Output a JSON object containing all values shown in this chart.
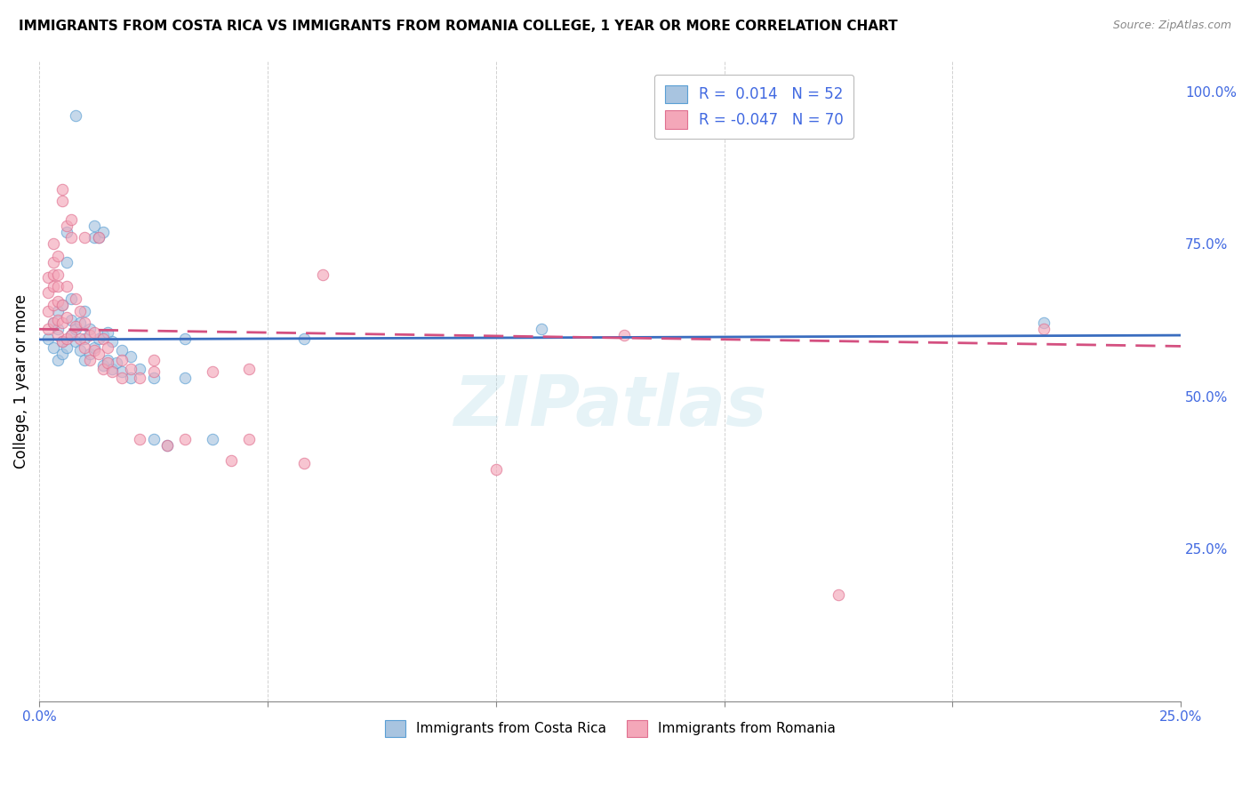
{
  "title": "IMMIGRANTS FROM COSTA RICA VS IMMIGRANTS FROM ROMANIA COLLEGE, 1 YEAR OR MORE CORRELATION CHART",
  "source": "Source: ZipAtlas.com",
  "ylabel": "College, 1 year or more",
  "watermark": "ZIPatlas",
  "color_blue": "#a8c4e0",
  "color_pink": "#f4a7b9",
  "color_blue_dark": "#5a9fd4",
  "color_pink_dark": "#e07090",
  "line_blue": "#3a6dbf",
  "line_pink": "#d45080",
  "blue_scatter": [
    [
      0.002,
      0.595
    ],
    [
      0.003,
      0.58
    ],
    [
      0.003,
      0.62
    ],
    [
      0.004,
      0.56
    ],
    [
      0.004,
      0.61
    ],
    [
      0.004,
      0.64
    ],
    [
      0.005,
      0.57
    ],
    [
      0.005,
      0.59
    ],
    [
      0.005,
      0.65
    ],
    [
      0.006,
      0.58
    ],
    [
      0.006,
      0.72
    ],
    [
      0.006,
      0.77
    ],
    [
      0.007,
      0.6
    ],
    [
      0.007,
      0.625
    ],
    [
      0.007,
      0.66
    ],
    [
      0.008,
      0.59
    ],
    [
      0.008,
      0.61
    ],
    [
      0.008,
      0.96
    ],
    [
      0.009,
      0.575
    ],
    [
      0.009,
      0.62
    ],
    [
      0.01,
      0.56
    ],
    [
      0.01,
      0.595
    ],
    [
      0.01,
      0.64
    ],
    [
      0.011,
      0.57
    ],
    [
      0.011,
      0.61
    ],
    [
      0.012,
      0.58
    ],
    [
      0.012,
      0.76
    ],
    [
      0.012,
      0.78
    ],
    [
      0.013,
      0.595
    ],
    [
      0.013,
      0.76
    ],
    [
      0.014,
      0.55
    ],
    [
      0.014,
      0.6
    ],
    [
      0.014,
      0.77
    ],
    [
      0.015,
      0.56
    ],
    [
      0.015,
      0.605
    ],
    [
      0.016,
      0.545
    ],
    [
      0.016,
      0.59
    ],
    [
      0.017,
      0.555
    ],
    [
      0.018,
      0.54
    ],
    [
      0.018,
      0.575
    ],
    [
      0.02,
      0.53
    ],
    [
      0.02,
      0.565
    ],
    [
      0.022,
      0.545
    ],
    [
      0.025,
      0.43
    ],
    [
      0.025,
      0.53
    ],
    [
      0.028,
      0.42
    ],
    [
      0.032,
      0.53
    ],
    [
      0.032,
      0.595
    ],
    [
      0.038,
      0.43
    ],
    [
      0.058,
      0.595
    ],
    [
      0.11,
      0.61
    ],
    [
      0.22,
      0.62
    ]
  ],
  "pink_scatter": [
    [
      0.002,
      0.61
    ],
    [
      0.002,
      0.64
    ],
    [
      0.002,
      0.67
    ],
    [
      0.002,
      0.695
    ],
    [
      0.003,
      0.62
    ],
    [
      0.003,
      0.65
    ],
    [
      0.003,
      0.68
    ],
    [
      0.003,
      0.7
    ],
    [
      0.003,
      0.72
    ],
    [
      0.003,
      0.75
    ],
    [
      0.004,
      0.6
    ],
    [
      0.004,
      0.625
    ],
    [
      0.004,
      0.655
    ],
    [
      0.004,
      0.68
    ],
    [
      0.004,
      0.7
    ],
    [
      0.004,
      0.73
    ],
    [
      0.005,
      0.59
    ],
    [
      0.005,
      0.62
    ],
    [
      0.005,
      0.65
    ],
    [
      0.005,
      0.82
    ],
    [
      0.005,
      0.84
    ],
    [
      0.006,
      0.595
    ],
    [
      0.006,
      0.63
    ],
    [
      0.006,
      0.68
    ],
    [
      0.006,
      0.78
    ],
    [
      0.007,
      0.6
    ],
    [
      0.007,
      0.76
    ],
    [
      0.007,
      0.79
    ],
    [
      0.008,
      0.615
    ],
    [
      0.008,
      0.66
    ],
    [
      0.009,
      0.595
    ],
    [
      0.009,
      0.64
    ],
    [
      0.01,
      0.58
    ],
    [
      0.01,
      0.62
    ],
    [
      0.01,
      0.76
    ],
    [
      0.011,
      0.56
    ],
    [
      0.011,
      0.6
    ],
    [
      0.012,
      0.575
    ],
    [
      0.012,
      0.605
    ],
    [
      0.013,
      0.57
    ],
    [
      0.013,
      0.76
    ],
    [
      0.014,
      0.545
    ],
    [
      0.014,
      0.595
    ],
    [
      0.015,
      0.555
    ],
    [
      0.015,
      0.58
    ],
    [
      0.016,
      0.54
    ],
    [
      0.018,
      0.53
    ],
    [
      0.018,
      0.56
    ],
    [
      0.02,
      0.545
    ],
    [
      0.022,
      0.43
    ],
    [
      0.022,
      0.53
    ],
    [
      0.025,
      0.54
    ],
    [
      0.025,
      0.56
    ],
    [
      0.028,
      0.42
    ],
    [
      0.032,
      0.43
    ],
    [
      0.038,
      0.54
    ],
    [
      0.042,
      0.395
    ],
    [
      0.046,
      0.43
    ],
    [
      0.046,
      0.545
    ],
    [
      0.058,
      0.39
    ],
    [
      0.062,
      0.7
    ],
    [
      0.1,
      0.38
    ],
    [
      0.128,
      0.6
    ],
    [
      0.175,
      0.175
    ],
    [
      0.22,
      0.61
    ]
  ],
  "xlim": [
    0.0,
    0.25
  ],
  "ylim": [
    0.0,
    1.05
  ],
  "xticks": [
    0.0,
    0.05,
    0.1,
    0.15,
    0.2,
    0.25
  ],
  "xticklabels_show": [
    "0.0%",
    "25.0%"
  ],
  "yticks_right": [
    0.25,
    0.5,
    0.75,
    1.0
  ],
  "ytick_labels_right": [
    "25.0%",
    "50.0%",
    "75.0%",
    "100.0%"
  ],
  "background_color": "#ffffff",
  "grid_color": "#cccccc",
  "scatter_size": 80,
  "scatter_alpha": 0.65,
  "blue_line_y0": 0.593,
  "blue_line_y1": 0.6,
  "pink_line_y0": 0.61,
  "pink_line_y1": 0.582,
  "legend_color": "#4169E1"
}
